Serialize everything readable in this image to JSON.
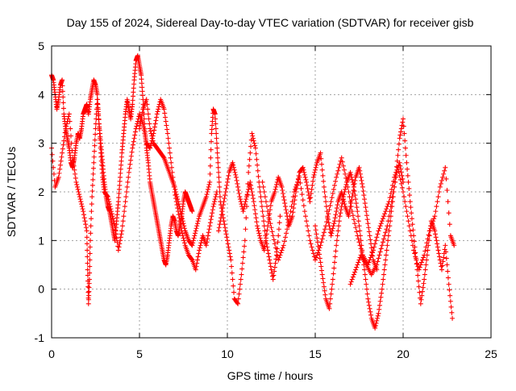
{
  "chart_data": {
    "type": "scatter",
    "title": "Day 155 of 2024, Sidereal Day-to-day VTEC variation (SDTVAR) for receiver gisb",
    "xlabel": "GPS time / hours",
    "ylabel": "SDTVAR / TECUs",
    "xlim": [
      0,
      25
    ],
    "ylim": [
      -1,
      5
    ],
    "xticks": [
      0,
      5,
      10,
      15,
      20,
      25
    ],
    "yticks": [
      -1,
      0,
      1,
      2,
      3,
      4,
      5
    ],
    "grid": true,
    "marker": "+",
    "series": [
      {
        "name": "SDTVAR",
        "color": "#ff0000",
        "tracks": [
          {
            "x": [
              0.0,
              0.1,
              0.2,
              0.3,
              0.4,
              0.5,
              0.6,
              0.7,
              0.8,
              0.9,
              1.0,
              1.1,
              1.2,
              1.3,
              1.4,
              1.5,
              1.6,
              1.7,
              1.8,
              1.9,
              2.0,
              2.1,
              2.2,
              2.3,
              2.4,
              2.5,
              2.6,
              2.7,
              2.8,
              2.9,
              3.0,
              3.1,
              3.2,
              3.3,
              3.4,
              3.5,
              3.6,
              3.7,
              3.8,
              3.9,
              4.0,
              4.1,
              4.2,
              4.3,
              4.4,
              4.5,
              4.6,
              4.7,
              4.8,
              4.9,
              5.0,
              5.1,
              5.2,
              5.3,
              5.4,
              5.5,
              5.6,
              5.7,
              5.8,
              5.9,
              6.0,
              6.1,
              6.2,
              6.3,
              6.4,
              6.5,
              6.6,
              6.7,
              6.8,
              6.9,
              7.0,
              7.1,
              7.2,
              7.3,
              7.4,
              7.5,
              7.6,
              7.7,
              7.8,
              7.9,
              8.0
            ],
            "y": [
              4.4,
              4.3,
              4.0,
              3.7,
              3.9,
              4.2,
              4.3,
              3.6,
              3.3,
              3.1,
              2.9,
              2.6,
              2.5,
              2.7,
              3.0,
              3.2,
              3.1,
              3.3,
              3.6,
              3.7,
              3.8,
              3.6,
              3.9,
              4.1,
              4.3,
              4.2,
              4.0,
              3.4,
              3.0,
              2.6,
              2.2,
              1.9,
              1.7,
              1.6,
              1.4,
              1.2,
              1.0,
              1.4,
              1.8,
              2.3,
              2.8,
              3.2,
              3.6,
              3.9,
              3.7,
              3.5,
              3.8,
              4.3,
              4.7,
              4.8,
              4.6,
              4.4,
              3.9,
              3.3,
              2.9,
              2.6,
              2.2,
              2.0,
              1.8,
              1.6,
              1.4,
              1.2,
              1.0,
              0.8,
              0.6,
              0.5,
              0.7,
              1.0,
              1.3,
              1.5,
              1.4,
              1.2,
              1.1,
              1.3,
              1.5,
              1.8,
              2.0,
              1.9,
              1.8,
              1.7,
              1.6
            ]
          },
          {
            "x": [
              0.0,
              0.2,
              0.4,
              0.6,
              0.8,
              1.0,
              1.2,
              1.4,
              1.6,
              1.8,
              2.0,
              2.05,
              2.1,
              2.15,
              2.2,
              2.3,
              2.4,
              2.5,
              2.6,
              2.7,
              2.8,
              2.9,
              3.0,
              3.2,
              3.4,
              3.6,
              3.8,
              4.0,
              4.2,
              4.4,
              4.6,
              4.8,
              5.0,
              5.2,
              5.4,
              5.6,
              5.8,
              6.0,
              6.2,
              6.4,
              6.6,
              6.8,
              7.0,
              7.2,
              7.4,
              7.6,
              7.8,
              8.0,
              8.2,
              8.4,
              8.6,
              8.8,
              9.0,
              9.2,
              9.4
            ],
            "y": [
              2.9,
              2.1,
              2.3,
              2.8,
              3.3,
              3.6,
              2.7,
              2.2,
              1.9,
              1.6,
              1.2,
              0.4,
              -0.3,
              0.2,
              1.0,
              1.9,
              2.6,
              3.3,
              3.9,
              3.4,
              2.8,
              2.3,
              2.0,
              1.9,
              1.6,
              1.3,
              0.8,
              1.2,
              1.8,
              2.4,
              2.9,
              3.3,
              3.6,
              3.4,
              3.0,
              2.9,
              3.2,
              3.6,
              3.9,
              3.7,
              3.2,
              2.6,
              2.0,
              1.6,
              1.2,
              0.9,
              0.7,
              0.6,
              0.4,
              0.8,
              1.1,
              0.9,
              1.3,
              1.7,
              2.0
            ]
          },
          {
            "x": [
              5.0,
              5.2,
              5.4,
              5.6,
              5.8,
              6.0,
              6.2,
              6.4,
              6.6,
              6.8,
              7.0,
              7.2,
              7.4,
              7.6,
              7.8,
              8.0,
              8.2,
              8.4,
              8.6,
              8.8,
              9.0,
              9.1,
              9.2,
              9.3,
              9.4,
              9.5,
              9.6,
              9.8,
              10.0,
              10.2,
              10.4,
              10.6,
              10.8,
              11.0,
              11.2,
              11.4,
              11.6,
              11.8,
              12.0,
              12.2,
              12.4,
              12.6,
              12.8,
              13.0
            ],
            "y": [
              3.3,
              3.7,
              3.9,
              3.3,
              3.0,
              2.9,
              2.8,
              2.7,
              2.5,
              2.3,
              2.1,
              1.8,
              1.5,
              1.2,
              1.0,
              0.9,
              1.2,
              1.5,
              1.7,
              1.9,
              2.2,
              3.2,
              3.7,
              3.6,
              3.0,
              2.4,
              1.8,
              1.4,
              1.0,
              0.6,
              -0.2,
              -0.3,
              0.3,
              1.0,
              2.4,
              3.2,
              2.9,
              2.2,
              1.6,
              1.0,
              0.6,
              0.2,
              0.7,
              1.5
            ]
          },
          {
            "x": [
              9.5,
              9.7,
              9.9,
              10.1,
              10.3,
              10.5,
              10.7,
              10.9,
              11.1,
              11.3,
              11.5,
              11.7,
              11.9,
              12.1,
              12.3,
              12.5,
              12.7,
              12.9,
              13.1,
              13.3,
              13.5,
              13.7,
              13.9,
              14.1,
              14.3,
              14.5,
              14.7,
              14.9,
              15.1,
              15.3,
              15.5,
              15.7,
              15.9,
              16.1,
              16.3,
              16.5,
              16.7,
              16.9,
              17.1,
              17.3,
              17.5,
              17.7,
              17.9,
              18.1,
              18.3,
              18.5
            ],
            "y": [
              1.2,
              1.6,
              2.0,
              2.4,
              2.6,
              2.3,
              1.9,
              1.6,
              1.9,
              2.2,
              1.8,
              1.3,
              1.0,
              0.8,
              1.3,
              1.8,
              2.0,
              2.3,
              2.1,
              1.7,
              1.3,
              1.5,
              2.0,
              2.4,
              2.5,
              2.2,
              1.8,
              2.3,
              2.6,
              2.8,
              2.1,
              1.5,
              1.1,
              1.4,
              1.8,
              2.0,
              1.7,
              1.5,
              1.9,
              2.3,
              2.5,
              2.1,
              1.6,
              1.1,
              0.6,
              0.4
            ]
          },
          {
            "x": [
              12.0,
              12.3,
              12.6,
              12.9,
              13.2,
              13.5,
              13.8,
              14.1,
              14.4,
              14.7,
              15.0,
              15.3,
              15.6,
              15.9,
              16.2,
              16.5,
              16.8,
              17.1,
              17.4,
              17.7,
              18.0,
              18.3,
              18.6,
              18.9,
              19.2,
              19.5,
              19.8,
              20.0
            ],
            "y": [
              2.2,
              1.6,
              1.1,
              0.6,
              0.9,
              1.4,
              2.0,
              2.3,
              1.6,
              1.0,
              0.6,
              0.9,
              1.3,
              1.8,
              2.3,
              2.7,
              2.2,
              1.6,
              1.1,
              0.7,
              0.5,
              0.8,
              1.2,
              1.5,
              1.8,
              2.3,
              2.6,
              2.2
            ]
          },
          {
            "x": [
              15.0,
              15.2,
              15.4,
              15.6,
              15.8,
              16.0,
              16.2,
              16.4,
              16.6,
              16.8,
              17.0,
              17.2,
              17.4,
              17.6,
              17.8,
              18.0,
              18.2,
              18.4,
              18.6,
              18.8,
              19.0,
              19.2,
              19.4,
              19.6,
              19.8,
              20.0,
              20.2,
              20.4,
              20.6,
              20.8,
              21.0,
              21.2,
              21.4,
              21.6,
              21.8,
              22.0,
              22.2,
              22.4,
              22.6,
              22.8
            ],
            "y": [
              1.3,
              0.8,
              0.3,
              -0.2,
              -0.4,
              0.2,
              0.9,
              1.5,
              1.9,
              2.2,
              2.4,
              2.1,
              1.6,
              1.0,
              0.4,
              -0.2,
              -0.6,
              -0.8,
              -0.5,
              0.0,
              0.6,
              1.2,
              1.8,
              2.4,
              3.1,
              3.5,
              2.6,
              1.8,
              1.1,
              0.4,
              -0.3,
              0.2,
              0.8,
              1.4,
              1.2,
              0.8,
              0.4,
              0.9,
              0.1,
              -0.6
            ]
          },
          {
            "x": [
              17.0,
              17.3,
              17.6,
              17.9,
              18.2,
              18.5,
              18.8,
              19.1,
              19.4,
              19.7,
              20.0,
              20.3,
              20.6,
              20.9,
              21.2,
              21.5,
              21.8,
              22.1,
              22.4,
              22.7,
              22.9
            ],
            "y": [
              0.1,
              0.4,
              0.7,
              0.5,
              0.3,
              0.5,
              0.9,
              1.3,
              1.9,
              2.5,
              2.0,
              1.4,
              0.8,
              0.4,
              0.7,
              1.2,
              1.5,
              2.1,
              2.5,
              1.1,
              0.9
            ]
          }
        ]
      }
    ]
  }
}
